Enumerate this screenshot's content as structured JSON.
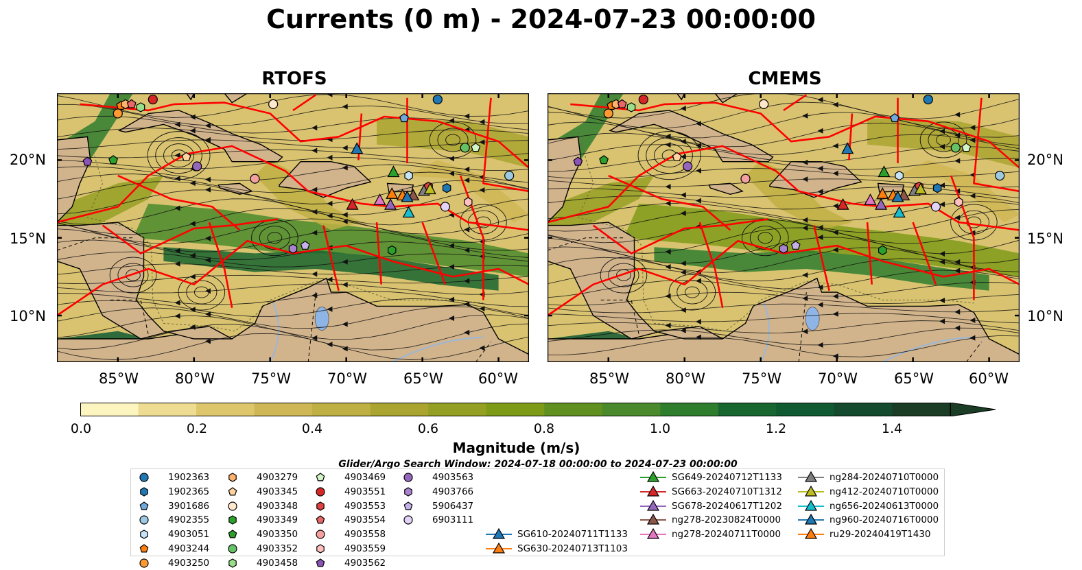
{
  "title": "Currents (0 m) - 2024-07-23 00:00:00",
  "panels": [
    {
      "title": "RTOFS"
    },
    {
      "title": "CMEMS"
    }
  ],
  "map_axes": {
    "lon_labels": [
      "85°W",
      "80°W",
      "75°W",
      "70°W",
      "65°W",
      "60°W"
    ],
    "lat_labels": [
      "20°N",
      "15°N",
      "10°N"
    ],
    "lon_extent": [
      -89,
      -58
    ],
    "lat_extent": [
      7,
      24.3
    ]
  },
  "colorbar": {
    "label": "Magnitude (m/s)",
    "tick_labels": [
      "0.0",
      "0.2",
      "0.4",
      "0.6",
      "0.8",
      "1.0",
      "1.2",
      "1.4"
    ],
    "range": [
      0.0,
      1.5
    ],
    "extend": "max",
    "colors": [
      "#fdf5c0",
      "#eedc92",
      "#ddc66c",
      "#cfb755",
      "#bfb043",
      "#aaa431",
      "#94a023",
      "#7e9b18",
      "#5f9020",
      "#4a8a2c",
      "#2f7e2e",
      "#17652f",
      "#0f5a31",
      "#144a2e",
      "#1b3d26"
    ]
  },
  "search_window": "Glider/Argo Search Window: 2024-07-18 00:00:00 to 2024-07-23 00:00:00",
  "legend": {
    "argo": [
      {
        "label": "1902363",
        "marker": "circle",
        "color": "#1f77b4"
      },
      {
        "label": "1902365",
        "marker": "hexagon",
        "color": "#1f77b4"
      },
      {
        "label": "3901686",
        "marker": "pentagon",
        "color": "#6fa8dc"
      },
      {
        "label": "4902355",
        "marker": "circle",
        "color": "#9ecae1"
      },
      {
        "label": "4903051",
        "marker": "hexagon",
        "color": "#c6e4f5"
      },
      {
        "label": "4903244",
        "marker": "pentagon",
        "color": "#ff7f0e"
      },
      {
        "label": "4903250",
        "marker": "circle",
        "color": "#ff9933"
      },
      {
        "label": "4903279",
        "marker": "hexagon",
        "color": "#ffb26b"
      },
      {
        "label": "4903345",
        "marker": "pentagon",
        "color": "#ffd2a0"
      },
      {
        "label": "4903348",
        "marker": "circle",
        "color": "#ffe7cc"
      },
      {
        "label": "4903349",
        "marker": "hexagon",
        "color": "#2ca02c"
      },
      {
        "label": "4903350",
        "marker": "pentagon",
        "color": "#2ca02c"
      },
      {
        "label": "4903352",
        "marker": "circle",
        "color": "#66c266"
      },
      {
        "label": "4903458",
        "marker": "hexagon",
        "color": "#98df8a"
      },
      {
        "label": "4903469",
        "marker": "pentagon",
        "color": "#d4f5c8"
      },
      {
        "label": "4903551",
        "marker": "circle",
        "color": "#d62728"
      },
      {
        "label": "4903553",
        "marker": "hexagon",
        "color": "#e04040"
      },
      {
        "label": "4903554",
        "marker": "pentagon",
        "color": "#e8686a"
      },
      {
        "label": "4903558",
        "marker": "circle",
        "color": "#f4a0a0"
      },
      {
        "label": "4903559",
        "marker": "hexagon",
        "color": "#ffc0bf"
      },
      {
        "label": "4903562",
        "marker": "pentagon",
        "color": "#8c54b8"
      },
      {
        "label": "4903563",
        "marker": "circle",
        "color": "#9467bd"
      },
      {
        "label": "4903766",
        "marker": "hexagon",
        "color": "#a982d0"
      },
      {
        "label": "5906437",
        "marker": "pentagon",
        "color": "#c5b0e8"
      },
      {
        "label": "6903111",
        "marker": "circle",
        "color": "#e2d4f6"
      }
    ],
    "gliders": [
      {
        "label": "SG610-20240711T1133",
        "color": "#1f77b4"
      },
      {
        "label": "SG630-20240713T1103",
        "color": "#ff7f0e"
      },
      {
        "label": "SG649-20240712T1133",
        "color": "#2ca02c"
      },
      {
        "label": "SG663-20240710T1312",
        "color": "#d62728"
      },
      {
        "label": "SG678-20240617T1202",
        "color": "#9467bd"
      },
      {
        "label": "ng278-20230824T0000",
        "color": "#8c564b"
      },
      {
        "label": "ng278-20240711T0000",
        "color": "#e377c2"
      },
      {
        "label": "ng284-20240710T0000",
        "color": "#7f7f7f"
      },
      {
        "label": "ng412-20240710T0000",
        "color": "#bcbd22"
      },
      {
        "label": "ng656-20240613T0000",
        "color": "#17becf"
      },
      {
        "label": "ng960-20240716T0000",
        "color": "#1f77b4"
      },
      {
        "label": "ru29-20240419T1430",
        "color": "#ff7f0e"
      }
    ]
  },
  "observations": {
    "argo": [
      {
        "id": "1902363",
        "lon": -64,
        "lat": 23.9
      },
      {
        "id": "1902365",
        "lon": -63.4,
        "lat": 18.2
      },
      {
        "id": "3901686",
        "lon": -66.2,
        "lat": 22.7
      },
      {
        "id": "4902355",
        "lon": -59.3,
        "lat": 19.0
      },
      {
        "id": "4903051",
        "lon": -65.9,
        "lat": 19.0
      },
      {
        "id": "4903244",
        "lon": -84.8,
        "lat": 23.5
      },
      {
        "id": "4903250",
        "lon": -85,
        "lat": 23.0
      },
      {
        "id": "4903279",
        "lon": -84.5,
        "lat": 23.6
      },
      {
        "id": "4903345",
        "lon": -80.5,
        "lat": 20.2
      },
      {
        "id": "4903348",
        "lon": -74.8,
        "lat": 23.6
      },
      {
        "id": "4903349",
        "lon": -67,
        "lat": 14.2
      },
      {
        "id": "4903350",
        "lon": -85.3,
        "lat": 20.0
      },
      {
        "id": "4903352",
        "lon": -62.2,
        "lat": 20.8
      },
      {
        "id": "4903458",
        "lon": -83.5,
        "lat": 23.4
      },
      {
        "id": "4903469",
        "lon": -61.5,
        "lat": 20.8
      },
      {
        "id": "4903551",
        "lon": -82.7,
        "lat": 23.9
      },
      {
        "id": "4903553",
        "lon": -64.6,
        "lat": 18.3
      },
      {
        "id": "4903554",
        "lon": -84.1,
        "lat": 23.6
      },
      {
        "id": "4903558",
        "lon": -76,
        "lat": 18.8
      },
      {
        "id": "4903559",
        "lon": -62,
        "lat": 17.3
      },
      {
        "id": "4903562",
        "lon": -87,
        "lat": 19.9
      },
      {
        "id": "4903563",
        "lon": -79.8,
        "lat": 19.6
      },
      {
        "id": "4903766",
        "lon": -73.5,
        "lat": 14.3
      },
      {
        "id": "5906437",
        "lon": -72.7,
        "lat": 14.5
      },
      {
        "id": "6903111",
        "lon": -63.5,
        "lat": 17.0
      }
    ],
    "gliders": [
      {
        "id": "SG610-20240711T1133",
        "lon": -69.3,
        "lat": 20.7
      },
      {
        "id": "SG630-20240713T1103",
        "lon": -66.3,
        "lat": 17.7
      },
      {
        "id": "SG649-20240712T1133",
        "lon": -66.9,
        "lat": 19.2
      },
      {
        "id": "SG663-20240710T1312",
        "lon": -69.6,
        "lat": 17.1
      },
      {
        "id": "SG678-20240617T1202",
        "lon": -67.1,
        "lat": 17.1
      },
      {
        "id": "ng278-20230824T0000",
        "lon": -65.6,
        "lat": 17.7
      },
      {
        "id": "ng278-20240711T0000",
        "lon": -67.8,
        "lat": 17.4
      },
      {
        "id": "ng284-20240710T0000",
        "lon": -64.9,
        "lat": 18.0
      },
      {
        "id": "ng412-20240710T0000",
        "lon": -64.5,
        "lat": 18.1
      },
      {
        "id": "ng656-20240613T0000",
        "lon": -65.9,
        "lat": 16.6
      },
      {
        "id": "ng960-20240716T0000",
        "lon": -66.0,
        "lat": 17.6
      },
      {
        "id": "ru29-20240419T1430",
        "lon": -67.0,
        "lat": 17.8
      }
    ]
  }
}
